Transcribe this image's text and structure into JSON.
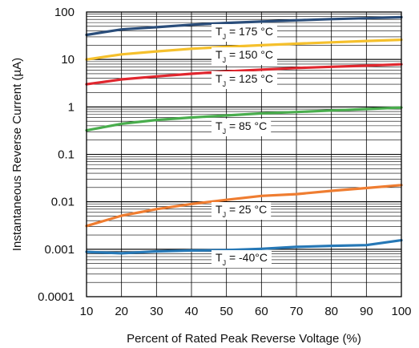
{
  "chart_data": {
    "type": "line",
    "title": "",
    "xlabel": "Percent of Rated Peak Reverse Voltage (%)",
    "ylabel": "Instantaneous Reverse Current (µA)",
    "xlim": [
      10,
      100
    ],
    "ylim": [
      0.0001,
      100
    ],
    "yscale": "log",
    "grid": true,
    "x_ticks": [
      "10",
      "20",
      "30",
      "40",
      "50",
      "60",
      "70",
      "80",
      "90",
      "100"
    ],
    "y_ticks": [
      "0.0001",
      "0.001",
      "0.01",
      "0.1",
      "1",
      "10",
      "100"
    ],
    "x": [
      10,
      20,
      30,
      40,
      50,
      60,
      70,
      80,
      90,
      100
    ],
    "series": [
      {
        "name": "T_J = 175 °C",
        "label_main": "T",
        "label_sub": "J",
        "label_rest": " = 175 °C",
        "color": "#2a4d7a",
        "values": [
          33,
          43,
          48,
          54,
          59,
          63,
          67,
          71,
          74,
          78
        ]
      },
      {
        "name": "T_J = 150 °C",
        "label_main": "T",
        "label_sub": "J",
        "label_rest": " = 150 °C",
        "color": "#f5c02c",
        "values": [
          10,
          12.8,
          14.8,
          16.8,
          18.5,
          20,
          21.5,
          23,
          24.5,
          26
        ]
      },
      {
        "name": "T_J = 125 °C",
        "label_main": "T",
        "label_sub": "J",
        "label_rest": " = 125 °C",
        "color": "#e0262e",
        "values": [
          3.0,
          3.8,
          4.4,
          5.0,
          5.6,
          6.1,
          6.6,
          7.0,
          7.4,
          7.9
        ]
      },
      {
        "name": "T_J = 85 °C",
        "label_main": "T",
        "label_sub": "J",
        "label_rest": " = 85 °C",
        "color": "#49ad4d",
        "values": [
          0.32,
          0.44,
          0.53,
          0.6,
          0.66,
          0.73,
          0.78,
          0.84,
          0.9,
          0.97
        ]
      },
      {
        "name": "T_J = 25 °C",
        "label_main": "T",
        "label_sub": "J",
        "label_rest": " = 25 °C",
        "color": "#ef7d31",
        "values": [
          0.0031,
          0.0051,
          0.007,
          0.009,
          0.011,
          0.0133,
          0.0145,
          0.017,
          0.0195,
          0.0225
        ]
      },
      {
        "name": "T_J = -40°C",
        "label_main": "T",
        "label_sub": "J",
        "label_rest": " = -40°C",
        "color": "#2678b6",
        "values": [
          0.00088,
          0.00082,
          0.0009,
          0.00094,
          0.00096,
          0.00102,
          0.00112,
          0.00118,
          0.00122,
          0.00155
        ]
      }
    ]
  }
}
